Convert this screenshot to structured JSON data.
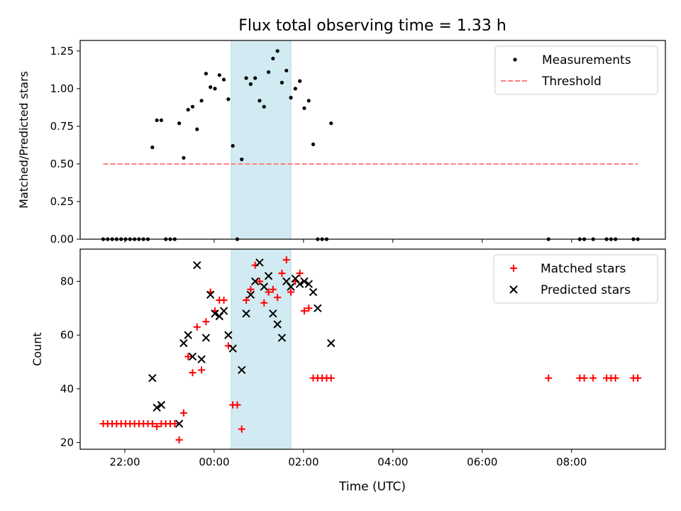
{
  "title": "Flux total observing time = 1.33 h",
  "xlabel": "Time (UTC)",
  "xticks": [
    "22:00",
    "00:00",
    "02:00",
    "04:00",
    "06:00",
    "08:00"
  ],
  "colors": {
    "measurements": "#000000",
    "threshold": "#ff7f7f",
    "matched": "#ff0000",
    "predicted": "#000000",
    "span": "#add8e6"
  },
  "chart_data": [
    {
      "type": "scatter",
      "ylabel": "Matched/Predicted stars",
      "yticks": [
        "0.00",
        "0.25",
        "0.50",
        "0.75",
        "1.00",
        "1.25"
      ],
      "xlim": [
        "21:00",
        "10:06"
      ],
      "ylim": [
        0,
        1.32
      ],
      "shaded_span": [
        "00:23",
        "01:43"
      ],
      "legend": "top-right",
      "series": [
        {
          "name": "Measurements",
          "marker": "dot",
          "points": [
            [
              "21:31",
              0
            ],
            [
              "21:37",
              0
            ],
            [
              "21:43",
              0
            ],
            [
              "21:49",
              0
            ],
            [
              "21:55",
              0
            ],
            [
              "22:01",
              0
            ],
            [
              "22:07",
              0
            ],
            [
              "22:13",
              0
            ],
            [
              "22:19",
              0
            ],
            [
              "22:25",
              0
            ],
            [
              "22:31",
              0
            ],
            [
              "22:37",
              0.61
            ],
            [
              "22:43",
              0.79
            ],
            [
              "22:49",
              0.79
            ],
            [
              "22:55",
              0
            ],
            [
              "23:01",
              0
            ],
            [
              "23:07",
              0
            ],
            [
              "23:13",
              0.77
            ],
            [
              "23:19",
              0.54
            ],
            [
              "23:25",
              0.86
            ],
            [
              "23:31",
              0.88
            ],
            [
              "23:37",
              0.73
            ],
            [
              "23:43",
              0.92
            ],
            [
              "23:49",
              1.1
            ],
            [
              "23:55",
              1.01
            ],
            [
              "24:01",
              1.0
            ],
            [
              "24:07",
              1.09
            ],
            [
              "24:13",
              1.06
            ],
            [
              "24:19",
              0.93
            ],
            [
              "24:25",
              0.62
            ],
            [
              "24:31",
              0
            ],
            [
              "24:37",
              0.53
            ],
            [
              "24:43",
              1.07
            ],
            [
              "24:49",
              1.03
            ],
            [
              "24:55",
              1.07
            ],
            [
              "25:01",
              0.92
            ],
            [
              "25:07",
              0.88
            ],
            [
              "25:13",
              1.11
            ],
            [
              "25:19",
              1.2
            ],
            [
              "25:25",
              1.25
            ],
            [
              "25:31",
              1.04
            ],
            [
              "25:37",
              1.12
            ],
            [
              "25:43",
              0.94
            ],
            [
              "25:49",
              1.0
            ],
            [
              "25:55",
              1.05
            ],
            [
              "26:01",
              0.87
            ],
            [
              "26:07",
              0.92
            ],
            [
              "26:13",
              0.63
            ],
            [
              "26:19",
              0
            ],
            [
              "26:25",
              0
            ],
            [
              "26:31",
              0
            ],
            [
              "26:37",
              0.77
            ],
            [
              "31:29",
              0
            ],
            [
              "32:11",
              0
            ],
            [
              "32:17",
              0
            ],
            [
              "32:29",
              0
            ],
            [
              "32:47",
              0
            ],
            [
              "32:53",
              0
            ],
            [
              "32:59",
              0
            ],
            [
              "33:23",
              0
            ],
            [
              "33:29",
              0
            ]
          ]
        },
        {
          "name": "Threshold",
          "style": "dashed",
          "points": [
            [
              "21:31",
              0.5
            ],
            [
              "33:29",
              0.5
            ]
          ]
        }
      ]
    },
    {
      "type": "scatter",
      "ylabel": "Count",
      "yticks": [
        "20",
        "40",
        "60",
        "80"
      ],
      "xlim": [
        "21:00",
        "10:06"
      ],
      "ylim": [
        17.5,
        92
      ],
      "shaded_span": [
        "00:23",
        "01:43"
      ],
      "legend": "top-right",
      "series": [
        {
          "name": "Matched stars",
          "marker": "plus",
          "points": [
            [
              "21:31",
              27
            ],
            [
              "21:37",
              27
            ],
            [
              "21:43",
              27
            ],
            [
              "21:49",
              27
            ],
            [
              "21:55",
              27
            ],
            [
              "22:01",
              27
            ],
            [
              "22:07",
              27
            ],
            [
              "22:13",
              27
            ],
            [
              "22:19",
              27
            ],
            [
              "22:25",
              27
            ],
            [
              "22:31",
              27
            ],
            [
              "22:37",
              27
            ],
            [
              "22:43",
              26
            ],
            [
              "22:49",
              27
            ],
            [
              "22:55",
              27
            ],
            [
              "23:01",
              27
            ],
            [
              "23:07",
              27
            ],
            [
              "23:13",
              21
            ],
            [
              "23:19",
              31
            ],
            [
              "23:25",
              52
            ],
            [
              "23:31",
              46
            ],
            [
              "23:37",
              63
            ],
            [
              "23:43",
              47
            ],
            [
              "23:49",
              65
            ],
            [
              "23:55",
              76
            ],
            [
              "24:01",
              69
            ],
            [
              "24:07",
              73
            ],
            [
              "24:13",
              73
            ],
            [
              "24:19",
              56
            ],
            [
              "24:25",
              34
            ],
            [
              "24:31",
              34
            ],
            [
              "24:37",
              25
            ],
            [
              "24:43",
              73
            ],
            [
              "24:49",
              77
            ],
            [
              "24:55",
              86
            ],
            [
              "25:01",
              80
            ],
            [
              "25:07",
              72
            ],
            [
              "25:13",
              76
            ],
            [
              "25:19",
              77
            ],
            [
              "25:25",
              74
            ],
            [
              "25:31",
              83
            ],
            [
              "25:37",
              88
            ],
            [
              "25:43",
              76
            ],
            [
              "25:49",
              80
            ],
            [
              "25:55",
              83
            ],
            [
              "26:01",
              69
            ],
            [
              "26:07",
              70
            ],
            [
              "26:13",
              44
            ],
            [
              "26:19",
              44
            ],
            [
              "26:25",
              44
            ],
            [
              "26:31",
              44
            ],
            [
              "26:37",
              44
            ],
            [
              "31:29",
              44
            ],
            [
              "32:11",
              44
            ],
            [
              "32:17",
              44
            ],
            [
              "32:29",
              44
            ],
            [
              "32:47",
              44
            ],
            [
              "32:53",
              44
            ],
            [
              "32:59",
              44
            ],
            [
              "33:23",
              44
            ],
            [
              "33:29",
              44
            ]
          ]
        },
        {
          "name": "Predicted stars",
          "marker": "x",
          "points": [
            [
              "22:37",
              44
            ],
            [
              "22:43",
              33
            ],
            [
              "22:49",
              34
            ],
            [
              "23:13",
              27
            ],
            [
              "23:19",
              57
            ],
            [
              "23:25",
              60
            ],
            [
              "23:31",
              52
            ],
            [
              "23:37",
              86
            ],
            [
              "23:43",
              51
            ],
            [
              "23:49",
              59
            ],
            [
              "23:55",
              75
            ],
            [
              "24:01",
              68
            ],
            [
              "24:07",
              67
            ],
            [
              "24:13",
              69
            ],
            [
              "24:19",
              60
            ],
            [
              "24:25",
              55
            ],
            [
              "24:37",
              47
            ],
            [
              "24:43",
              68
            ],
            [
              "24:49",
              75
            ],
            [
              "24:55",
              80
            ],
            [
              "25:01",
              87
            ],
            [
              "25:07",
              78
            ],
            [
              "25:13",
              82
            ],
            [
              "25:19",
              68
            ],
            [
              "25:25",
              64
            ],
            [
              "25:31",
              59
            ],
            [
              "25:37",
              80
            ],
            [
              "25:43",
              78
            ],
            [
              "25:49",
              81
            ],
            [
              "25:55",
              79
            ],
            [
              "26:01",
              80
            ],
            [
              "26:07",
              79
            ],
            [
              "26:13",
              76
            ],
            [
              "26:19",
              70
            ],
            [
              "26:37",
              57
            ]
          ]
        }
      ]
    }
  ]
}
